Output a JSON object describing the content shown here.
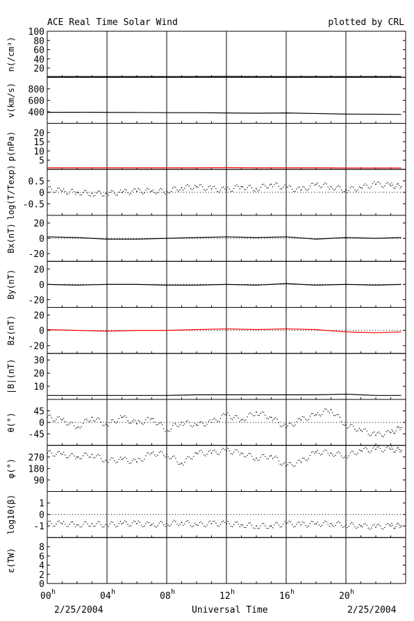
{
  "header": {
    "title": "ACE Real Time Solar Wind",
    "credit": "plotted by CRL"
  },
  "footer": {
    "date_left": "2/25/2004",
    "xlabel": "Universal Time",
    "date_right": "2/25/2004"
  },
  "colors": {
    "axis": "#000000",
    "trace": "#000000",
    "highlight": "#ff0000"
  },
  "chart_data": [
    {
      "type": "line",
      "ylabel": "n(/cm³)",
      "ylim": [
        0,
        100
      ],
      "yticks": [
        "20",
        "40",
        "60",
        "80",
        "100"
      ],
      "ytick_values": [
        20,
        40,
        60,
        80,
        100
      ],
      "refline": null,
      "grid": false,
      "series": [
        {
          "x": [
            0,
            2,
            4,
            6,
            8,
            10,
            12,
            14,
            16,
            18,
            20,
            22,
            23.7
          ],
          "values": [
            1.5,
            1.5,
            1.5,
            1.5,
            1.5,
            1.5,
            2,
            1.5,
            1.5,
            1.5,
            1.5,
            1.5,
            1.5
          ],
          "color": "#000000"
        }
      ]
    },
    {
      "type": "line",
      "ylabel": "v(km/s)",
      "ylim": [
        200,
        1000
      ],
      "yticks": [
        "400",
        "600",
        "800"
      ],
      "ytick_values": [
        400,
        600,
        800
      ],
      "refline": null,
      "grid": false,
      "series": [
        {
          "x": [
            0,
            2,
            4,
            6,
            8,
            10,
            12,
            14,
            16,
            18,
            20,
            22,
            23.7
          ],
          "values": [
            390,
            392,
            390,
            388,
            385,
            385,
            380,
            375,
            380,
            370,
            360,
            358,
            355
          ],
          "color": "#000000"
        }
      ]
    },
    {
      "type": "line",
      "ylabel": "p(nPa)",
      "ylim": [
        0,
        25
      ],
      "yticks": [
        "5",
        "10",
        "15",
        "20"
      ],
      "ytick_values": [
        5,
        10,
        15,
        20
      ],
      "refline": null,
      "grid": false,
      "series": [
        {
          "x": [
            0,
            2,
            4,
            6,
            8,
            10,
            12,
            14,
            16,
            18,
            20,
            22,
            23.7
          ],
          "values": [
            0.8,
            0.8,
            0.8,
            0.8,
            0.8,
            0.8,
            0.9,
            0.8,
            0.8,
            0.8,
            0.7,
            0.7,
            0.7
          ],
          "color": "#ff0000"
        }
      ]
    },
    {
      "type": "scatter",
      "ylabel": "log(T/Texp)",
      "ylim": [
        -1,
        1
      ],
      "yticks": [
        "-0.5",
        "0",
        "0.5"
      ],
      "ytick_values": [
        -0.5,
        0,
        0.5
      ],
      "refline": 0,
      "grid": false,
      "series": [
        {
          "x": [
            0,
            1,
            2,
            3,
            4,
            5,
            6,
            7,
            8,
            9,
            10,
            11,
            12,
            13,
            14,
            15,
            16,
            17,
            18,
            19,
            20,
            21,
            22,
            23,
            23.7
          ],
          "values": [
            0.15,
            0.05,
            0,
            -0.05,
            -0.05,
            0,
            0.05,
            0.05,
            0.05,
            0.2,
            0.25,
            0.15,
            0.1,
            0.25,
            0.15,
            0.35,
            0.2,
            0.1,
            0.35,
            0.25,
            0.1,
            0.2,
            0.35,
            0.3,
            0.25
          ],
          "color": "#000000"
        }
      ]
    },
    {
      "type": "line",
      "ylabel": "Bx(nT)",
      "ylim": [
        -30,
        30
      ],
      "yticks": [
        "-20",
        "0",
        "20"
      ],
      "ytick_values": [
        -20,
        0,
        20
      ],
      "refline": 0,
      "grid": false,
      "series": [
        {
          "x": [
            0,
            2,
            4,
            6,
            8,
            10,
            12,
            14,
            16,
            18,
            20,
            22,
            23.7
          ],
          "values": [
            2,
            1,
            -1,
            -1,
            0,
            1,
            2,
            1,
            2,
            -1,
            1,
            0,
            1
          ],
          "color": "#000000"
        }
      ]
    },
    {
      "type": "line",
      "ylabel": "By(nT)",
      "ylim": [
        -30,
        30
      ],
      "yticks": [
        "-20",
        "0",
        "20"
      ],
      "ytick_values": [
        -20,
        0,
        20
      ],
      "refline": 0,
      "grid": false,
      "series": [
        {
          "x": [
            0,
            2,
            4,
            6,
            8,
            10,
            12,
            14,
            16,
            18,
            20,
            22,
            23.7
          ],
          "values": [
            0,
            -1,
            0,
            0,
            -1,
            -1,
            0,
            -1,
            1,
            -1,
            0,
            -1,
            0
          ],
          "color": "#000000"
        }
      ]
    },
    {
      "type": "line",
      "ylabel": "Bz(nT)",
      "ylim": [
        -30,
        30
      ],
      "yticks": [
        "-20",
        "0",
        "20"
      ],
      "ytick_values": [
        -20,
        0,
        20
      ],
      "refline": 0,
      "grid": false,
      "series": [
        {
          "x": [
            0,
            2,
            4,
            6,
            8,
            10,
            12,
            14,
            16,
            18,
            20,
            22,
            23.7
          ],
          "values": [
            1,
            0,
            -1,
            0,
            0,
            1,
            2,
            1,
            2,
            1,
            -2,
            -3,
            -2
          ],
          "color": "#ff0000"
        }
      ]
    },
    {
      "type": "line",
      "ylabel": "|B|(nT)",
      "ylim": [
        0,
        35
      ],
      "yticks": [
        "10",
        "20",
        "30"
      ],
      "ytick_values": [
        10,
        20,
        30
      ],
      "refline": null,
      "grid": false,
      "series": [
        {
          "x": [
            0,
            2,
            4,
            6,
            8,
            10,
            12,
            14,
            16,
            18,
            20,
            22,
            23.7
          ],
          "values": [
            3,
            3,
            3,
            3,
            3,
            3.5,
            3.5,
            3.5,
            3.5,
            3.5,
            4,
            3,
            3
          ],
          "color": "#000000"
        }
      ]
    },
    {
      "type": "scatter",
      "ylabel": "θ(°)",
      "ylim": [
        -90,
        90
      ],
      "yticks": [
        "-45",
        "0",
        "45"
      ],
      "ytick_values": [
        -45,
        0,
        45
      ],
      "refline": 0,
      "grid": false,
      "series": [
        {
          "x": [
            0,
            1,
            2,
            3,
            4,
            5,
            6,
            7,
            8,
            9,
            10,
            11,
            12,
            13,
            14,
            15,
            16,
            17,
            18,
            19,
            20,
            21,
            22,
            23,
            23.7
          ],
          "values": [
            20,
            10,
            -20,
            20,
            -10,
            20,
            -5,
            15,
            -30,
            0,
            -10,
            0,
            30,
            10,
            40,
            20,
            -20,
            10,
            30,
            50,
            -10,
            -30,
            -50,
            -40,
            -20
          ],
          "color": "#000000"
        }
      ]
    },
    {
      "type": "scatter",
      "ylabel": "φ(°)",
      "ylim": [
        0,
        360
      ],
      "yticks": [
        "90",
        "180",
        "270"
      ],
      "ytick_values": [
        90,
        180,
        270
      ],
      "refline": null,
      "grid": false,
      "series": [
        {
          "x": [
            0,
            1,
            2,
            3,
            4,
            5,
            6,
            7,
            8,
            9,
            10,
            11,
            12,
            13,
            14,
            15,
            16,
            17,
            18,
            19,
            20,
            21,
            22,
            23,
            23.7
          ],
          "values": [
            300,
            290,
            270,
            290,
            240,
            250,
            230,
            300,
            290,
            220,
            300,
            300,
            320,
            300,
            260,
            280,
            200,
            230,
            310,
            300,
            280,
            320,
            330,
            330,
            320
          ],
          "color": "#000000"
        }
      ]
    },
    {
      "type": "scatter",
      "ylabel": "log10(β)",
      "ylim": [
        -2,
        2
      ],
      "yticks": [
        "-1",
        "0",
        "1"
      ],
      "ytick_values": [
        -1,
        0,
        1
      ],
      "refline": 0,
      "grid": false,
      "series": [
        {
          "x": [
            0,
            1,
            2,
            3,
            4,
            5,
            6,
            7,
            8,
            9,
            10,
            11,
            12,
            13,
            14,
            15,
            16,
            17,
            18,
            19,
            20,
            21,
            22,
            23,
            23.7
          ],
          "values": [
            -0.8,
            -0.8,
            -0.9,
            -0.8,
            -0.9,
            -0.8,
            -0.8,
            -0.9,
            -0.8,
            -0.7,
            -0.9,
            -0.8,
            -0.8,
            -0.9,
            -1,
            -1,
            -0.8,
            -0.9,
            -0.8,
            -0.8,
            -0.9,
            -1,
            -1.1,
            -1,
            -1
          ],
          "color": "#000000"
        }
      ]
    },
    {
      "type": "line",
      "ylabel": "ε(TW)",
      "ylim": [
        0,
        10
      ],
      "yticks": [
        "0",
        "2",
        "4",
        "6",
        "8"
      ],
      "ytick_values": [
        0,
        2,
        4,
        6,
        8
      ],
      "refline": null,
      "grid": false,
      "series": []
    }
  ],
  "xaxis": {
    "range_hours": [
      0,
      24
    ],
    "ticks": [
      {
        "hour": 0,
        "label": "00",
        "sup": "h"
      },
      {
        "hour": 4,
        "label": "04",
        "sup": "h"
      },
      {
        "hour": 8,
        "label": "08",
        "sup": "h"
      },
      {
        "hour": 12,
        "label": "12",
        "sup": "h"
      },
      {
        "hour": 16,
        "label": "16",
        "sup": "h"
      },
      {
        "hour": 20,
        "label": "20",
        "sup": "h"
      }
    ],
    "vlines_hours": [
      4,
      8,
      12,
      16,
      20
    ]
  }
}
